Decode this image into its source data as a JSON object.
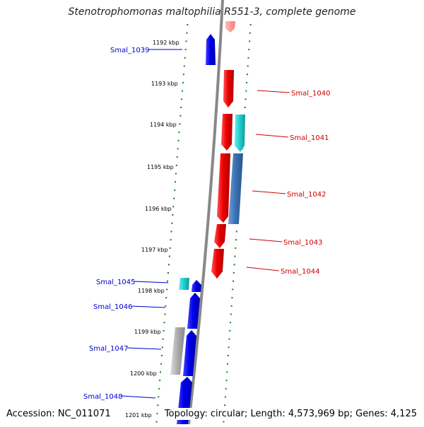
{
  "title": "Stenotrophomonas maltophilia R551-3, complete genome",
  "footer": {
    "accession": "Accession: NC_011071",
    "summary": "Topology: circular; Length: 4,573,969 bp; Genes: 4,125"
  },
  "colors": {
    "forward": "#ee0000",
    "reverse": "#0000dd",
    "cyan": "#22cccc",
    "steel": "#3a6fb0",
    "gray": "#aaaaaa",
    "backbone": "#888888",
    "ticks": "#1a7a1a"
  },
  "scale": {
    "labels": [
      "1192 kbp",
      "1193 kbp",
      "1194 kbp",
      "1195 kbp",
      "1196 kbp",
      "1197 kbp",
      "1198 kbp",
      "1199 kbp",
      "1200 kbp",
      "1201 kbp"
    ]
  },
  "genes": {
    "left": [
      {
        "name": "Smal_1039",
        "color": "#0000cc"
      },
      {
        "name": "Smal_1045",
        "color": "#0000cc"
      },
      {
        "name": "Smal_1046",
        "color": "#0000cc"
      },
      {
        "name": "Smal_1047",
        "color": "#0000cc"
      },
      {
        "name": "Smal_1048",
        "color": "#0000cc"
      }
    ],
    "right": [
      {
        "name": "Smal_1040",
        "color": "#cc0000"
      },
      {
        "name": "Smal_1041",
        "color": "#cc0000"
      },
      {
        "name": "Smal_1042",
        "color": "#cc0000"
      },
      {
        "name": "Smal_1043",
        "color": "#cc0000"
      },
      {
        "name": "Smal_1044",
        "color": "#cc0000"
      }
    ]
  }
}
